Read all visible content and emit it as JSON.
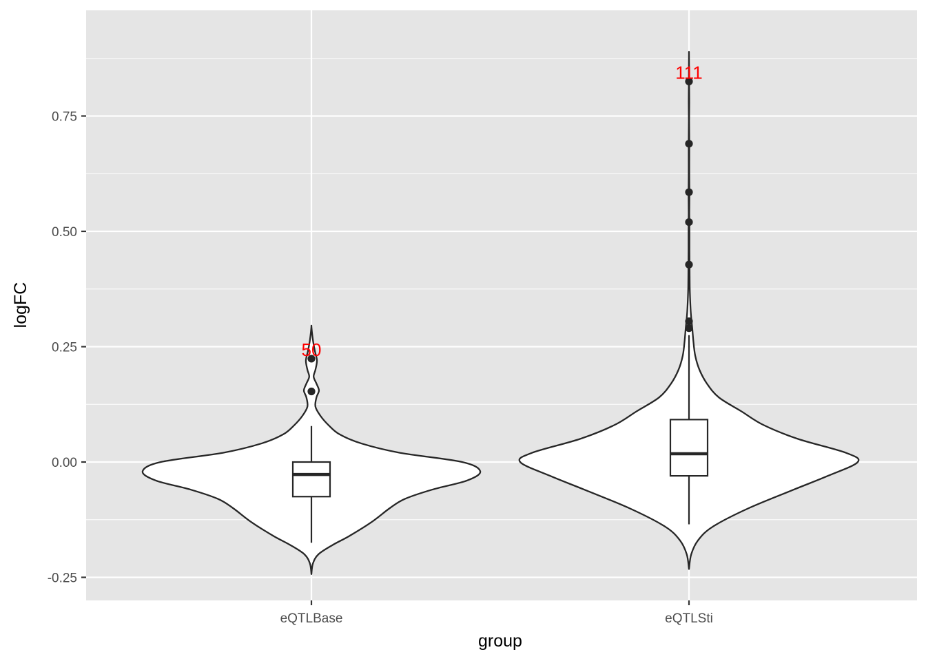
{
  "chart_data": {
    "type": "violin",
    "xlabel": "group",
    "ylabel": "logFC",
    "ylim": [
      -0.3,
      1.0
    ],
    "yticks": [
      -0.25,
      0.0,
      0.25,
      0.5,
      0.75
    ],
    "ytick_labels": [
      "-0.25",
      "0.00",
      "0.25",
      "0.50",
      "0.75"
    ],
    "categories": [
      "eQTLBase",
      "eQTLSti"
    ],
    "groups": [
      {
        "name": "eQTLBase",
        "count_label": "50",
        "box": {
          "q1": -0.075,
          "median": -0.027,
          "q3": 0.0,
          "whisker_low": -0.175,
          "whisker_high": 0.078
        },
        "outliers": [
          0.153,
          0.224
        ],
        "density": [
          [
            -0.243,
            0.0
          ],
          [
            -0.22,
            0.015
          ],
          [
            -0.2,
            0.07
          ],
          [
            -0.18,
            0.21
          ],
          [
            -0.16,
            0.38
          ],
          [
            -0.13,
            0.6
          ],
          [
            -0.1,
            0.78
          ],
          [
            -0.08,
            0.93
          ],
          [
            -0.06,
            1.2
          ],
          [
            -0.04,
            1.55
          ],
          [
            -0.02,
            1.68
          ],
          [
            0.0,
            1.5
          ],
          [
            0.02,
            0.88
          ],
          [
            0.04,
            0.5
          ],
          [
            0.06,
            0.28
          ],
          [
            0.08,
            0.17
          ],
          [
            0.1,
            0.09
          ],
          [
            0.12,
            0.04
          ],
          [
            0.14,
            0.05
          ],
          [
            0.155,
            0.075
          ],
          [
            0.17,
            0.05
          ],
          [
            0.185,
            0.022
          ],
          [
            0.2,
            0.04
          ],
          [
            0.22,
            0.055
          ],
          [
            0.24,
            0.035
          ],
          [
            0.26,
            0.018
          ],
          [
            0.28,
            0.006
          ],
          [
            0.294,
            0.0
          ]
        ]
      },
      {
        "name": "eQTLSti",
        "count_label": "111",
        "box": {
          "q1": -0.03,
          "median": 0.018,
          "q3": 0.092,
          "whisker_low": -0.135,
          "whisker_high": 0.275
        },
        "outliers": [
          0.29,
          0.305,
          0.428,
          0.52,
          0.585,
          0.69,
          0.825
        ],
        "density": [
          [
            -0.232,
            0.0
          ],
          [
            -0.2,
            0.015
          ],
          [
            -0.17,
            0.06
          ],
          [
            -0.14,
            0.16
          ],
          [
            -0.1,
            0.4
          ],
          [
            -0.06,
            0.7
          ],
          [
            -0.03,
            0.93
          ],
          [
            0.0,
            1.13
          ],
          [
            0.02,
            1.05
          ],
          [
            0.05,
            0.73
          ],
          [
            0.08,
            0.5
          ],
          [
            0.11,
            0.35
          ],
          [
            0.14,
            0.2
          ],
          [
            0.17,
            0.12
          ],
          [
            0.2,
            0.07
          ],
          [
            0.23,
            0.042
          ],
          [
            0.26,
            0.03
          ],
          [
            0.29,
            0.022
          ],
          [
            0.32,
            0.013
          ],
          [
            0.35,
            0.008
          ],
          [
            0.38,
            0.005
          ],
          [
            0.42,
            0.004
          ],
          [
            0.46,
            0.003
          ],
          [
            0.5,
            0.003
          ],
          [
            0.54,
            0.002
          ],
          [
            0.58,
            0.003
          ],
          [
            0.62,
            0.002
          ],
          [
            0.66,
            0.002
          ],
          [
            0.7,
            0.002
          ],
          [
            0.74,
            0.001
          ],
          [
            0.78,
            0.002
          ],
          [
            0.82,
            0.001
          ],
          [
            0.86,
            0.0005
          ],
          [
            0.886,
            0.0
          ]
        ]
      }
    ],
    "colors": {
      "panel_bg": "#e5e5e5",
      "grid": "#ffffff",
      "violin_fill": "#ffffff",
      "outline": "#262626",
      "count_label": "#ff0000",
      "tick_text": "#4d4d4d",
      "axis_title": "#000000"
    }
  }
}
